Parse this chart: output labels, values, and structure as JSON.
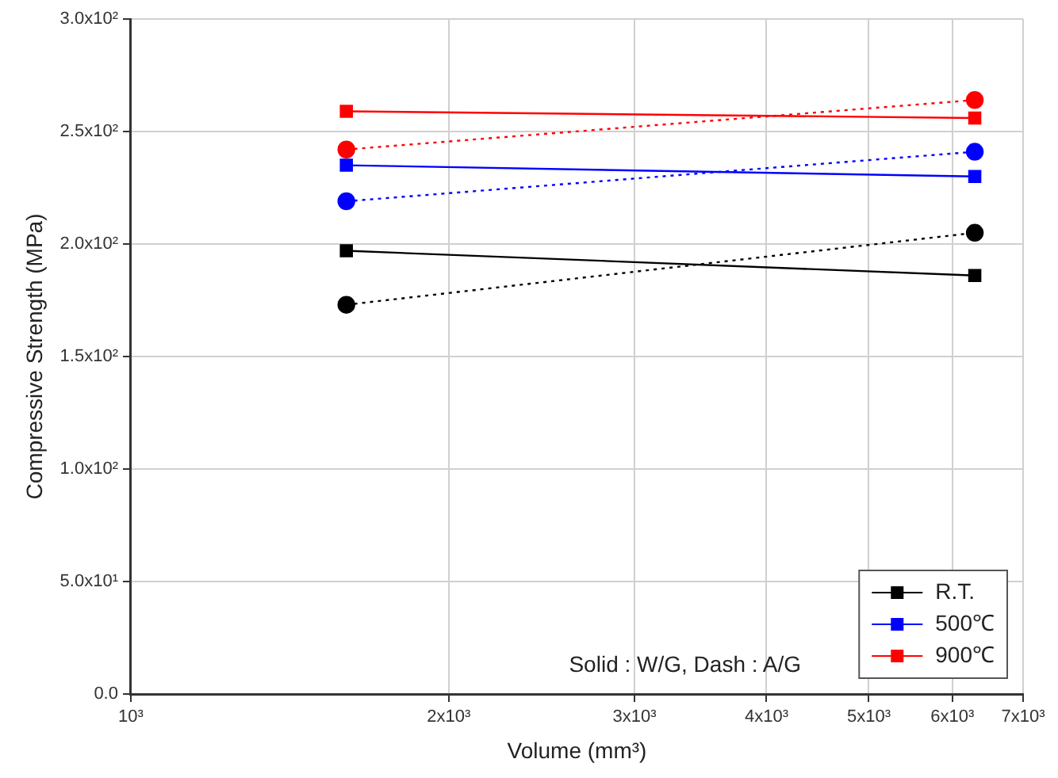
{
  "chart_data": {
    "type": "line",
    "xlabel": "Volume (mm³)",
    "ylabel": "Compressive Strength (MPa)",
    "log": "x",
    "xlim": [
      1000,
      7000
    ],
    "xticks": [
      {
        "value": 1000,
        "label": "10³"
      },
      {
        "value": 2000,
        "label": "2x10³"
      },
      {
        "value": 3000,
        "label": "3x10³"
      },
      {
        "value": 4000,
        "label": "4x10³"
      },
      {
        "value": 5000,
        "label": "5x10³"
      },
      {
        "value": 6000,
        "label": "6x10³"
      },
      {
        "value": 7000,
        "label": "7x10³"
      }
    ],
    "ylim": [
      0,
      300
    ],
    "yticks": [
      {
        "value": 0,
        "label": "0.0"
      },
      {
        "value": 50,
        "label": "5.0x10¹"
      },
      {
        "value": 100,
        "label": "1.0x10²"
      },
      {
        "value": 150,
        "label": "1.5x10²"
      },
      {
        "value": 200,
        "label": "2.0x10²"
      },
      {
        "value": 250,
        "label": "2.5x10²"
      },
      {
        "value": 300,
        "label": "3.0x10²"
      }
    ],
    "x": [
      1600,
      6300
    ],
    "series": [
      {
        "name": "R.T.",
        "color": "#000000",
        "values": [
          197,
          186
        ],
        "marker": "square",
        "line_style": "solid"
      },
      {
        "name": "500℃",
        "color": "#0000ff",
        "values": [
          235,
          230
        ],
        "marker": "square",
        "line_style": "solid"
      },
      {
        "name": "900℃",
        "color": "#ff0000",
        "values": [
          259,
          256
        ],
        "marker": "square",
        "line_style": "solid"
      },
      {
        "color": "#000000",
        "values": [
          173,
          205
        ],
        "marker": "circle",
        "line_style": "dotted"
      },
      {
        "color": "#0000ff",
        "values": [
          219,
          241
        ],
        "marker": "circle",
        "line_style": "dotted"
      },
      {
        "color": "#ff0000",
        "values": [
          242,
          264
        ],
        "marker": "circle",
        "line_style": "dotted"
      }
    ],
    "grid": true,
    "legend": "bottom right",
    "annotations": [
      "Solid : W/G, Dash : A/G"
    ]
  }
}
